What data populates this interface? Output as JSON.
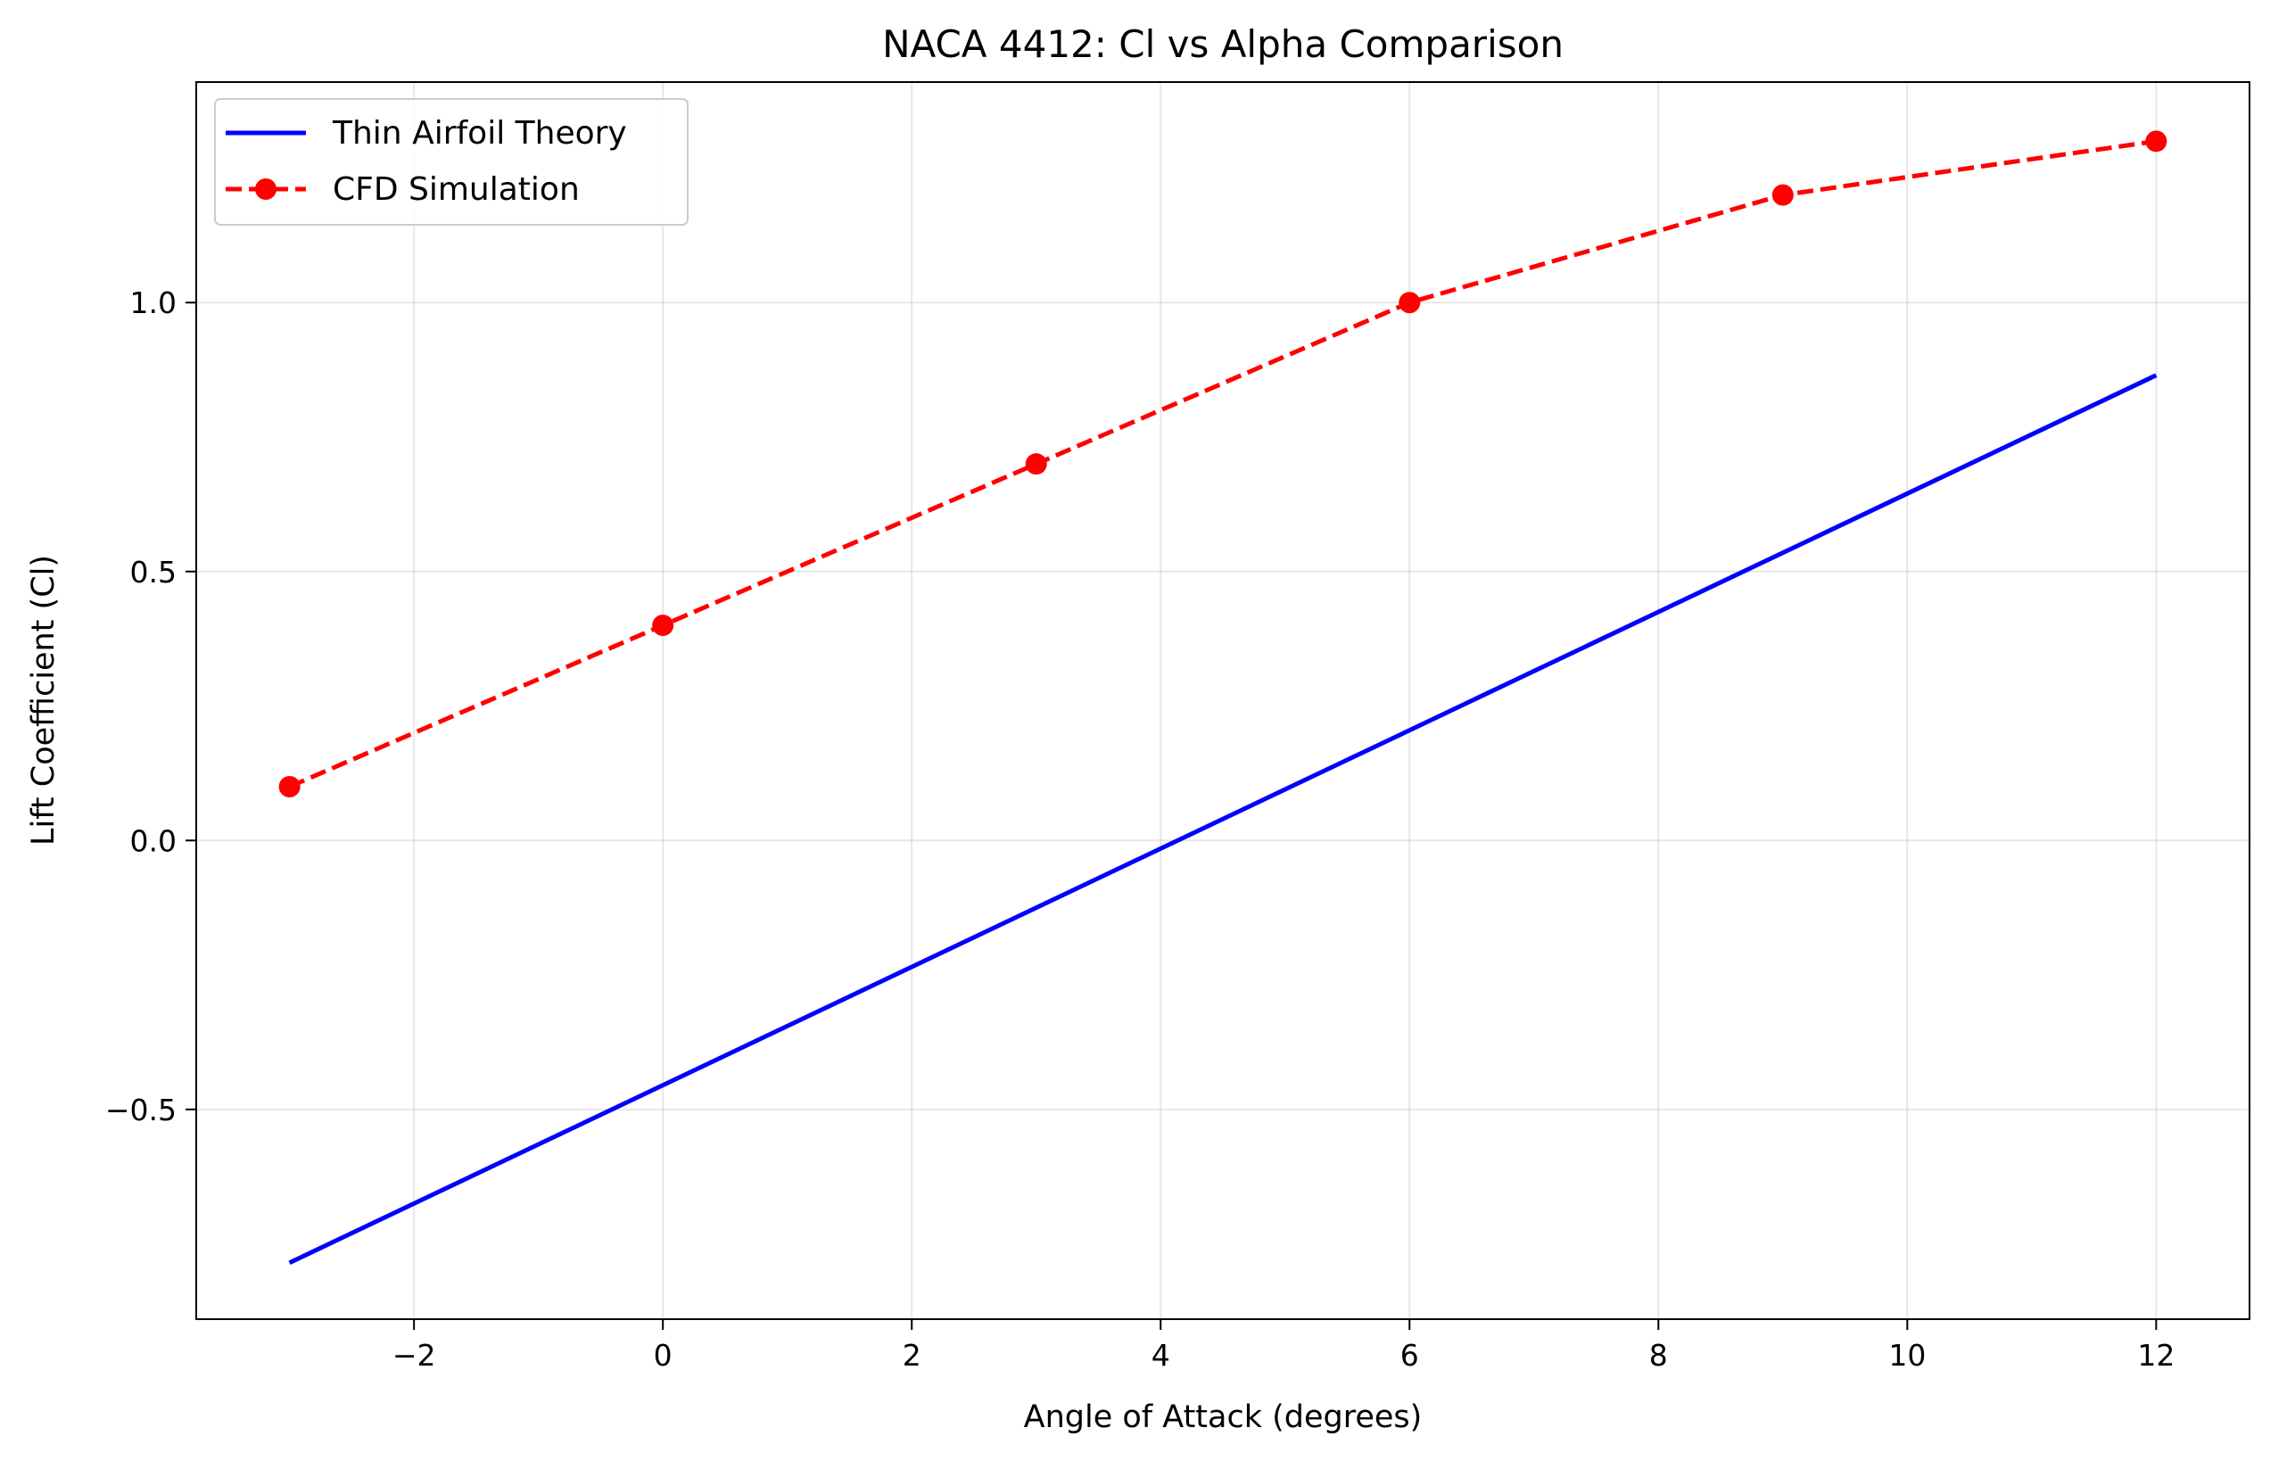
{
  "chart_data": {
    "type": "line",
    "title": "NACA 4412: Cl vs Alpha Comparison",
    "xlabel": "Angle of Attack (degrees)",
    "ylabel": "Lift Coefficient (Cl)",
    "xlim": [
      -3.75,
      12.75
    ],
    "ylim": [
      -0.89,
      1.41
    ],
    "xticks": [
      -2,
      0,
      2,
      4,
      6,
      8,
      10,
      12
    ],
    "xtick_labels": [
      "−2",
      "0",
      "2",
      "4",
      "6",
      "8",
      "10",
      "12"
    ],
    "yticks": [
      -0.5,
      0.0,
      0.5,
      1.0
    ],
    "ytick_labels": [
      "−0.5",
      "0.0",
      "0.5",
      "1.0"
    ],
    "grid": true,
    "legend_position": "upper-left",
    "series": [
      {
        "name": "Thin Airfoil Theory",
        "color": "#0000ff",
        "style": "solid",
        "markers": false,
        "x": [
          -3,
          12
        ],
        "y": [
          -0.785,
          0.865
        ]
      },
      {
        "name": "CFD Simulation",
        "color": "#ff0000",
        "style": "dashed",
        "markers": true,
        "x": [
          -3,
          0,
          3,
          6,
          9,
          12
        ],
        "y": [
          0.1,
          0.4,
          0.7,
          1.0,
          1.2,
          1.3
        ]
      }
    ]
  }
}
